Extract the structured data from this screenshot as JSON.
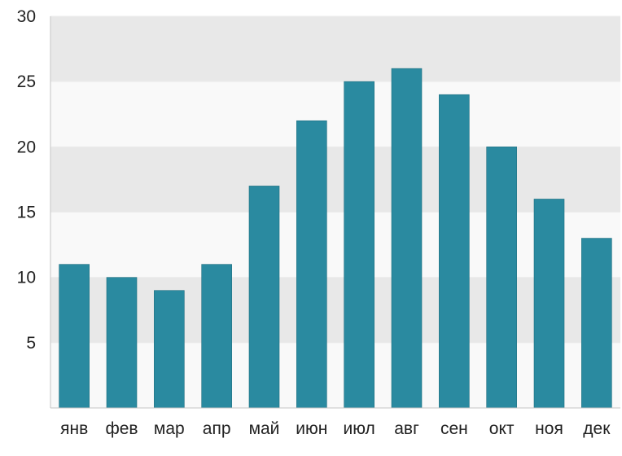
{
  "chart_data": {
    "type": "bar",
    "categories": [
      "янв",
      "фев",
      "мар",
      "апр",
      "май",
      "июн",
      "июл",
      "авг",
      "сен",
      "окт",
      "ноя",
      "дек"
    ],
    "values": [
      11,
      10,
      9,
      11,
      17,
      22,
      25,
      26,
      24,
      20,
      16,
      13
    ],
    "title": "",
    "xlabel": "",
    "ylabel": "",
    "ylim": [
      0,
      30
    ],
    "yticks": [
      5,
      10,
      15,
      20,
      25,
      30
    ],
    "grid": true,
    "legend": "none",
    "colors": {
      "bar": "#2a8aa0",
      "band_dark": "#e8e8e8",
      "band_light": "#f9f9f9",
      "axis": "#c4c4c4",
      "text": "#222222"
    }
  }
}
